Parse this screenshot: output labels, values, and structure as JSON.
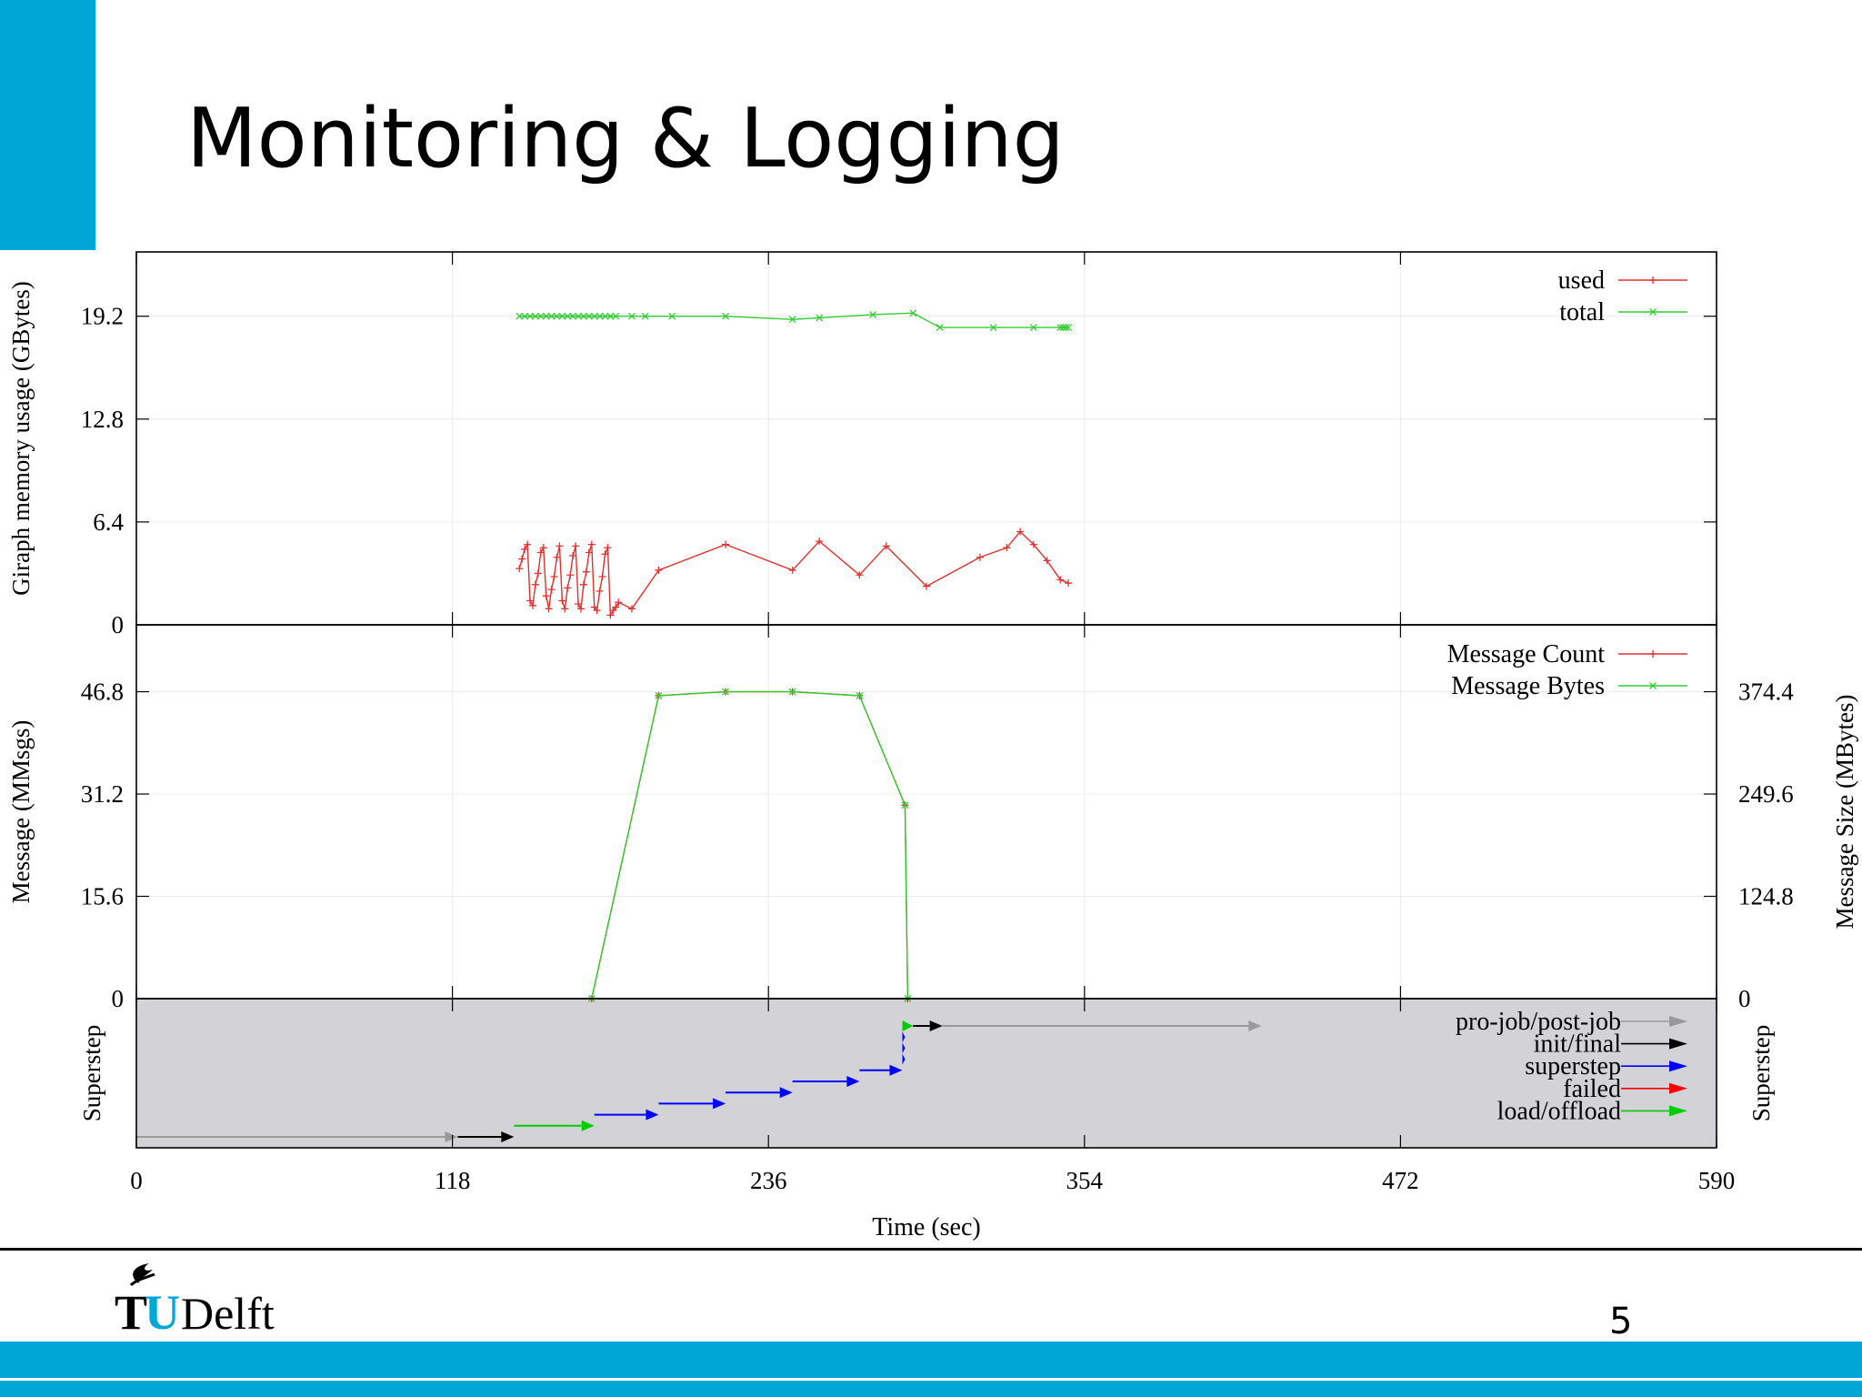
{
  "slide": {
    "title": "Monitoring & Logging",
    "page_number": "5",
    "logo_text": "TUDelft",
    "accent_color": "#00a6d6"
  },
  "chart_data": [
    {
      "type": "line",
      "title": "",
      "xlabel": "",
      "ylabel": "Giraph memory usage (GBytes)",
      "xlim": [
        0,
        590
      ],
      "ylim": [
        0,
        23.2
      ],
      "yticks": [
        "0",
        "6.4",
        "12.8",
        "19.2"
      ],
      "legend_position": "top-right",
      "series": [
        {
          "name": "used",
          "color": "#e03131",
          "marker": "plus",
          "x": [
            143,
            144,
            145,
            146,
            147,
            148,
            149,
            150,
            151,
            152,
            153,
            154,
            155,
            156,
            157,
            158,
            159,
            160,
            161,
            162,
            163,
            164,
            165,
            166,
            167,
            168,
            169,
            170,
            171,
            172,
            173,
            174,
            175,
            176,
            177,
            178,
            179,
            180,
            185,
            195,
            220,
            245,
            255,
            270,
            280,
            295,
            315,
            325,
            330,
            335,
            340,
            345,
            348
          ],
          "y": [
            3.5,
            4.1,
            4.7,
            5.0,
            1.5,
            1.2,
            2.5,
            3.2,
            4.5,
            4.8,
            1.8,
            1.0,
            2.2,
            3.0,
            4.2,
            4.9,
            1.5,
            1.0,
            2.3,
            3.1,
            4.3,
            4.9,
            1.3,
            1.0,
            2.5,
            3.3,
            4.5,
            5.0,
            1.1,
            0.9,
            2.1,
            3.0,
            4.4,
            4.8,
            0.6,
            0.9,
            1.1,
            1.4,
            1.0,
            3.4,
            5.0,
            3.4,
            5.2,
            3.1,
            4.9,
            2.4,
            4.2,
            4.8,
            5.8,
            5.0,
            4.0,
            2.8,
            2.6
          ]
        },
        {
          "name": "total",
          "color": "#33cc33",
          "marker": "cross",
          "x": [
            143,
            145,
            147,
            149,
            151,
            153,
            155,
            157,
            159,
            161,
            163,
            165,
            167,
            169,
            171,
            173,
            175,
            177,
            179,
            185,
            190,
            200,
            220,
            245,
            255,
            275,
            290,
            300,
            320,
            335,
            345,
            346,
            347,
            348
          ],
          "y": [
            19.2,
            19.2,
            19.2,
            19.2,
            19.2,
            19.2,
            19.2,
            19.2,
            19.2,
            19.2,
            19.2,
            19.2,
            19.2,
            19.2,
            19.2,
            19.2,
            19.2,
            19.2,
            19.2,
            19.2,
            19.2,
            19.2,
            19.2,
            19.0,
            19.1,
            19.3,
            19.4,
            18.5,
            18.5,
            18.5,
            18.5,
            18.5,
            18.5,
            18.5
          ]
        }
      ]
    },
    {
      "type": "line",
      "title": "",
      "xlabel": "",
      "ylabel": "Message (MMsgs)",
      "y2label": "Message Size (MBytes)",
      "xlim": [
        0,
        590
      ],
      "ylim": [
        0,
        57
      ],
      "y2lim": [
        0,
        456
      ],
      "yticks": [
        "0",
        "15.6",
        "31.2",
        "46.8"
      ],
      "y2ticks": [
        "0",
        "124.8",
        "249.6",
        "374.4"
      ],
      "legend_position": "top-right",
      "series": [
        {
          "name": "Message Count",
          "color": "#e03131",
          "marker": "plus",
          "x": [
            170,
            195,
            220,
            245,
            270,
            287,
            288
          ],
          "y": [
            0,
            46.2,
            46.8,
            46.8,
            46.2,
            29.5,
            0
          ]
        },
        {
          "name": "Message Bytes",
          "color": "#33cc33",
          "marker": "cross",
          "x": [
            170,
            195,
            220,
            245,
            270,
            287,
            288
          ],
          "y": [
            0,
            369.6,
            374.4,
            374.4,
            369.6,
            236,
            0
          ]
        }
      ]
    },
    {
      "type": "gantt",
      "title": "",
      "xlabel": "Time (sec)",
      "ylabel": "Superstep",
      "y2label": "Superstep",
      "xlim": [
        0,
        590
      ],
      "xticks": [
        "0",
        "118",
        "236",
        "354",
        "472",
        "590"
      ],
      "background": "#d3d3d7",
      "legend_position": "top-right",
      "legend": [
        {
          "name": "pro-job/post-job",
          "color": "#999999"
        },
        {
          "name": "init/final",
          "color": "#000000"
        },
        {
          "name": "superstep",
          "color": "#0000ff"
        },
        {
          "name": "failed",
          "color": "#ff0000"
        },
        {
          "name": "load/offload",
          "color": "#00cc00"
        }
      ],
      "bars": [
        {
          "category": "pro-job/post-job",
          "start": 0,
          "end": 120,
          "level": 0
        },
        {
          "category": "init/final",
          "start": 120,
          "end": 141,
          "level": 0
        },
        {
          "category": "load/offload",
          "start": 141,
          "end": 171,
          "level": 1
        },
        {
          "category": "superstep",
          "start": 171,
          "end": 195,
          "level": 2
        },
        {
          "category": "superstep",
          "start": 195,
          "end": 220,
          "level": 3
        },
        {
          "category": "superstep",
          "start": 220,
          "end": 245,
          "level": 4
        },
        {
          "category": "superstep",
          "start": 245,
          "end": 270,
          "level": 5
        },
        {
          "category": "superstep",
          "start": 270,
          "end": 286,
          "level": 6
        },
        {
          "category": "superstep",
          "start": 286,
          "end": 287,
          "level": 7
        },
        {
          "category": "superstep",
          "start": 286,
          "end": 287,
          "level": 8
        },
        {
          "category": "superstep",
          "start": 286,
          "end": 287,
          "level": 9
        },
        {
          "category": "load/offload",
          "start": 286,
          "end": 290,
          "level": 10
        },
        {
          "category": "init/final",
          "start": 290,
          "end": 301,
          "level": 10
        },
        {
          "category": "pro-job/post-job",
          "start": 301,
          "end": 420,
          "level": 10
        }
      ]
    }
  ]
}
